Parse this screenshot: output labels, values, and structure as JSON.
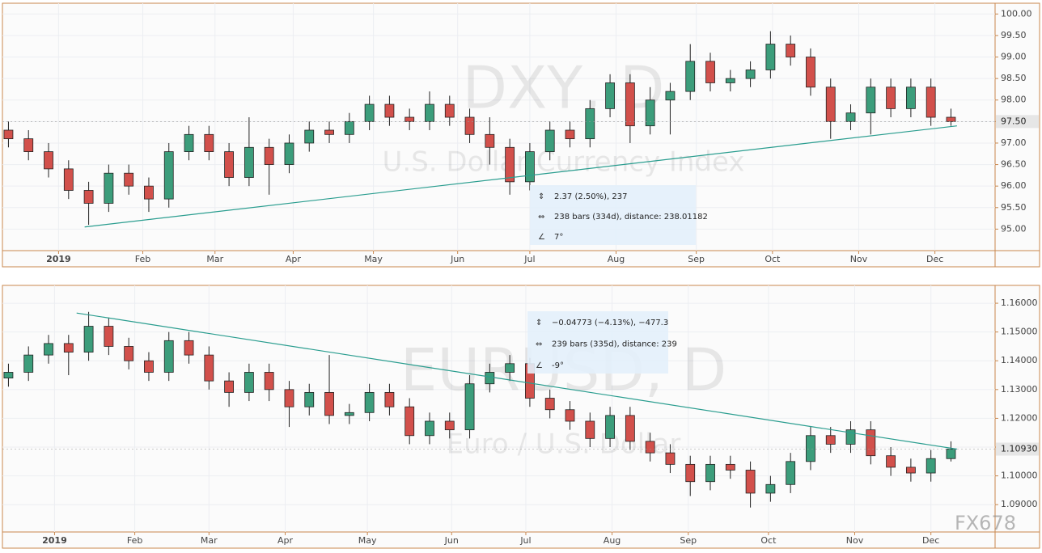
{
  "chart_data": [
    {
      "type": "candlestick",
      "title": "DXY, D",
      "subtitle": "U.S. Dollar Currency Index",
      "up_color": "#3c9d7b",
      "down_color": "#d2504b",
      "grid": true,
      "open": [
        97.3,
        97.1,
        96.8,
        96.4,
        95.9,
        95.6,
        96.3,
        96.0,
        95.7,
        96.8,
        97.2,
        96.8,
        96.2,
        96.9,
        96.5,
        97.0,
        97.3,
        97.2,
        97.5,
        97.9,
        97.6,
        97.5,
        97.9,
        97.6,
        97.2,
        96.9,
        96.1,
        96.8,
        97.3,
        97.1,
        97.8,
        98.4,
        97.4,
        98.0,
        98.2,
        98.9,
        98.4,
        98.5,
        98.7,
        99.3,
        99.0,
        98.3,
        97.5,
        97.7,
        98.3,
        97.8,
        98.3,
        97.6
      ],
      "high": [
        97.5,
        97.3,
        97.0,
        96.6,
        96.1,
        96.5,
        96.5,
        96.2,
        97.0,
        97.4,
        97.4,
        97.0,
        97.6,
        97.1,
        97.2,
        97.5,
        97.5,
        97.7,
        98.1,
        98.1,
        97.8,
        98.2,
        98.1,
        97.8,
        97.6,
        97.1,
        97.0,
        97.5,
        97.5,
        98.0,
        98.6,
        98.6,
        98.3,
        98.4,
        99.3,
        99.1,
        98.7,
        98.9,
        99.6,
        99.5,
        99.2,
        98.5,
        97.9,
        98.5,
        98.5,
        98.5,
        98.5,
        97.8
      ],
      "low": [
        96.9,
        96.6,
        96.2,
        95.7,
        95.1,
        95.4,
        95.8,
        95.4,
        95.5,
        96.6,
        96.6,
        96.0,
        96.0,
        95.8,
        96.3,
        96.8,
        97.0,
        97.0,
        97.3,
        97.4,
        97.3,
        97.3,
        97.4,
        97.0,
        96.5,
        95.8,
        95.9,
        96.6,
        96.9,
        96.9,
        97.6,
        97.0,
        97.2,
        97.2,
        98.0,
        98.2,
        98.2,
        98.3,
        98.5,
        98.8,
        98.1,
        97.1,
        97.3,
        97.2,
        97.6,
        97.6,
        97.4,
        97.4
      ],
      "close": [
        97.1,
        96.8,
        96.4,
        95.9,
        95.6,
        96.3,
        96.0,
        95.7,
        96.8,
        97.2,
        96.8,
        96.2,
        96.9,
        96.5,
        97.0,
        97.3,
        97.2,
        97.5,
        97.9,
        97.6,
        97.5,
        97.9,
        97.6,
        97.2,
        96.9,
        96.1,
        96.8,
        97.3,
        97.1,
        97.8,
        98.4,
        97.4,
        98.0,
        98.2,
        98.9,
        98.4,
        98.5,
        98.7,
        99.3,
        99.0,
        98.3,
        97.5,
        97.7,
        98.3,
        97.8,
        98.3,
        97.6,
        97.5
      ],
      "xlim": [
        -0.3,
        49.2
      ],
      "xticks": [
        {
          "value": 2.5,
          "label": "2019"
        },
        {
          "value": 6.7,
          "label": "Feb"
        },
        {
          "value": 10.3,
          "label": "Mar"
        },
        {
          "value": 14.2,
          "label": "Apr"
        },
        {
          "value": 18.2,
          "label": "May"
        },
        {
          "value": 22.4,
          "label": "Jun"
        },
        {
          "value": 26,
          "label": "Jul"
        },
        {
          "value": 30.3,
          "label": "Aug"
        },
        {
          "value": 34.3,
          "label": "Sep"
        },
        {
          "value": 38.1,
          "label": "Oct"
        },
        {
          "value": 42.4,
          "label": "Nov"
        },
        {
          "value": 46.2,
          "label": "Dec"
        }
      ],
      "ylim": [
        94.5,
        100.25
      ],
      "yticks": [
        {
          "value": 95,
          "label": "95.00"
        },
        {
          "value": 95.5,
          "label": "95.50"
        },
        {
          "value": 96,
          "label": "96.00"
        },
        {
          "value": 96.5,
          "label": "96.50"
        },
        {
          "value": 97,
          "label": "97.00"
        },
        {
          "value": 97.5,
          "label": "97.50"
        },
        {
          "value": 98,
          "label": "98.00"
        },
        {
          "value": 98.5,
          "label": "98.50"
        },
        {
          "value": 99,
          "label": "99.00"
        },
        {
          "value": 99.5,
          "label": "99.50"
        },
        {
          "value": 100,
          "label": "100.00"
        }
      ],
      "last_price": {
        "value": 97.5,
        "label": "97.50"
      },
      "trend_line": {
        "x": [
          3.8,
          47.3
        ],
        "y": [
          95.05,
          97.4
        ],
        "color": "#2a9d8f"
      },
      "measure": [
        "2.37 (2.50%), 237",
        "238 bars (334d), distance: 238.01182",
        "7°"
      ]
    },
    {
      "type": "candlestick",
      "title": "EURUSD, D",
      "subtitle": "Euro / U.S. Dollar",
      "up_color": "#3c9d7b",
      "down_color": "#d2504b",
      "grid": true,
      "open": [
        1.134,
        1.136,
        1.142,
        1.146,
        1.143,
        1.152,
        1.145,
        1.14,
        1.136,
        1.147,
        1.142,
        1.133,
        1.129,
        1.136,
        1.13,
        1.124,
        1.129,
        1.121,
        1.122,
        1.129,
        1.124,
        1.114,
        1.119,
        1.116,
        1.132,
        1.136,
        1.139,
        1.127,
        1.123,
        1.119,
        1.113,
        1.121,
        1.112,
        1.108,
        1.104,
        1.098,
        1.104,
        1.102,
        1.094,
        1.097,
        1.105,
        1.114,
        1.111,
        1.116,
        1.107,
        1.103,
        1.101,
        1.106
      ],
      "high": [
        1.139,
        1.145,
        1.149,
        1.149,
        1.157,
        1.155,
        1.148,
        1.143,
        1.15,
        1.15,
        1.145,
        1.136,
        1.139,
        1.139,
        1.133,
        1.132,
        1.142,
        1.125,
        1.132,
        1.132,
        1.127,
        1.122,
        1.122,
        1.135,
        1.139,
        1.142,
        1.141,
        1.13,
        1.126,
        1.122,
        1.124,
        1.124,
        1.115,
        1.111,
        1.107,
        1.107,
        1.107,
        1.105,
        1.1,
        1.108,
        1.117,
        1.117,
        1.119,
        1.119,
        1.11,
        1.106,
        1.109,
        1.112
      ],
      "low": [
        1.131,
        1.133,
        1.139,
        1.135,
        1.14,
        1.142,
        1.137,
        1.133,
        1.133,
        1.139,
        1.13,
        1.124,
        1.126,
        1.126,
        1.117,
        1.121,
        1.118,
        1.118,
        1.119,
        1.121,
        1.111,
        1.111,
        1.113,
        1.113,
        1.129,
        1.133,
        1.124,
        1.12,
        1.116,
        1.11,
        1.11,
        1.109,
        1.105,
        1.101,
        1.093,
        1.095,
        1.099,
        1.089,
        1.091,
        1.094,
        1.102,
        1.108,
        1.108,
        1.104,
        1.1,
        1.098,
        1.098,
        1.105
      ],
      "close": [
        1.136,
        1.142,
        1.146,
        1.143,
        1.152,
        1.145,
        1.14,
        1.136,
        1.147,
        1.142,
        1.133,
        1.129,
        1.136,
        1.13,
        1.124,
        1.129,
        1.121,
        1.122,
        1.129,
        1.124,
        1.114,
        1.119,
        1.116,
        1.132,
        1.136,
        1.139,
        1.127,
        1.123,
        1.119,
        1.113,
        1.121,
        1.112,
        1.108,
        1.104,
        1.098,
        1.104,
        1.102,
        1.094,
        1.097,
        1.105,
        1.114,
        1.111,
        1.116,
        1.107,
        1.103,
        1.101,
        1.106,
        1.1093
      ],
      "xlim": [
        -0.3,
        49.2
      ],
      "xticks": [
        {
          "value": 2.3,
          "label": "2019"
        },
        {
          "value": 6.3,
          "label": "Feb"
        },
        {
          "value": 10,
          "label": "Mar"
        },
        {
          "value": 13.8,
          "label": "Apr"
        },
        {
          "value": 17.9,
          "label": "May"
        },
        {
          "value": 22.1,
          "label": "Jun"
        },
        {
          "value": 25.8,
          "label": "Jul"
        },
        {
          "value": 30.1,
          "label": "Aug"
        },
        {
          "value": 33.9,
          "label": "Sep"
        },
        {
          "value": 37.9,
          "label": "Oct"
        },
        {
          "value": 42.2,
          "label": "Nov"
        },
        {
          "value": 46,
          "label": "Dec"
        }
      ],
      "ylim": [
        1.0805,
        1.1662
      ],
      "yticks": [
        {
          "value": 1.09,
          "label": "1.09000"
        },
        {
          "value": 1.1,
          "label": "1.10000"
        },
        {
          "value": 1.11,
          "label": "1.11000"
        },
        {
          "value": 1.12,
          "label": "1.12000"
        },
        {
          "value": 1.13,
          "label": "1.13000"
        },
        {
          "value": 1.14,
          "label": "1.14000"
        },
        {
          "value": 1.15,
          "label": "1.15000"
        },
        {
          "value": 1.16,
          "label": "1.16000"
        }
      ],
      "last_price": {
        "value": 1.1093,
        "label": "1.10930"
      },
      "trend_line": {
        "x": [
          3.4,
          47.3
        ],
        "y": [
          1.1566,
          1.1093
        ],
        "color": "#2a9d8f"
      },
      "measure": [
        "−0.04773 (−4.13%), −477.3",
        "239 bars (335d), distance: 239",
        "-9°"
      ],
      "logo": "FX678"
    }
  ]
}
